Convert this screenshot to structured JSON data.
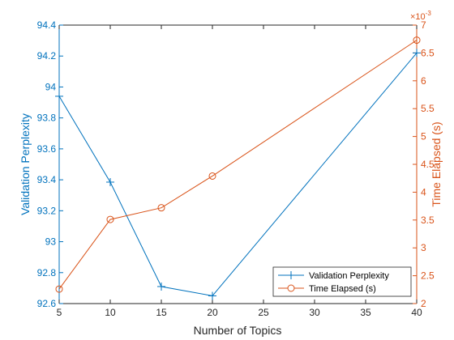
{
  "chart_data": {
    "type": "line",
    "xlabel": "Number of Topics",
    "ylabel_left": "Validation Perplexity",
    "ylabel_right": "Time Elapsed (s)",
    "right_axis_exponent": "×10",
    "right_axis_exponent_power": "-3",
    "x_scale": "linear, irregular tick spacing (equal spacing between listed ticks)",
    "x_ticks": [
      "5",
      "10",
      "15",
      "20",
      "25",
      "30",
      "35",
      "40"
    ],
    "x_tick_values": [
      5,
      10,
      15,
      20,
      25,
      30,
      35,
      40
    ],
    "y_left_ticks": [
      "92.6",
      "92.8",
      "93",
      "93.2",
      "93.4",
      "93.6",
      "93.8",
      "94",
      "94.2",
      "94.4"
    ],
    "y_left_lim": [
      92.6,
      94.4
    ],
    "y_right_ticks": [
      "2",
      "2.5",
      "3",
      "3.5",
      "4",
      "4.5",
      "5",
      "5.5",
      "6",
      "6.5",
      "7"
    ],
    "y_right_lim": [
      2,
      7
    ],
    "legend_position": "bottom-right",
    "grid": false,
    "colors": {
      "left": "#0072BD",
      "right": "#D95319",
      "axis": "#262626"
    },
    "series": [
      {
        "name": "Validation Perplexity",
        "axis": "left",
        "marker": "plus",
        "color": "#0072BD",
        "x": [
          5,
          10,
          15,
          20,
          40
        ],
        "y": [
          93.94,
          93.385,
          92.71,
          92.65,
          94.22
        ]
      },
      {
        "name": "Time Elapsed (s)",
        "axis": "right",
        "marker": "circle",
        "color": "#D95319",
        "x": [
          5,
          10,
          15,
          20,
          40
        ],
        "y": [
          2.26,
          3.51,
          3.72,
          4.29,
          6.73
        ]
      }
    ]
  }
}
